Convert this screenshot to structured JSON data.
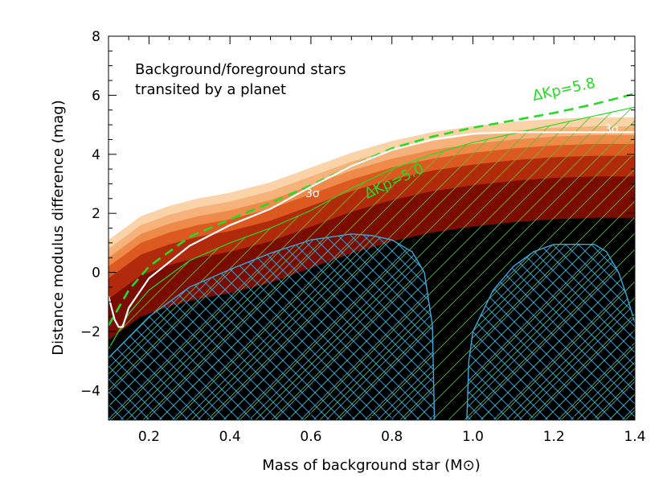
{
  "chart_data": {
    "type": "area",
    "xlabel": "Mass of background star (M⊙)",
    "ylabel": "Distance modulus difference (mag)",
    "xlim": [
      0.1,
      1.4
    ],
    "ylim": [
      -5,
      8
    ],
    "xticks": [
      0.2,
      0.4,
      0.6,
      0.8,
      1.0,
      1.2,
      1.4
    ],
    "xtick_labels": [
      "0.2",
      "0.4",
      "0.6",
      "0.8",
      "1.0",
      "1.2",
      "1.4"
    ],
    "yticks": [
      -4,
      -2,
      0,
      2,
      4,
      6,
      8
    ],
    "ytick_labels": [
      "−4",
      "−2",
      "0",
      "2",
      "4",
      "6",
      "8"
    ],
    "annotations": {
      "note_line1": "Background/foreground stars",
      "note_line2": "transited by a planet",
      "kp58_label": "ΔKp=5.8",
      "kp50_label": "ΔKp=5.0",
      "sigma_label_a": "3σ",
      "sigma_label_b": "3σ"
    },
    "colors": {
      "density_bands": [
        "#fbd3a8",
        "#f6b27a",
        "#ee8a4a",
        "#dc5a22",
        "#b22a0c",
        "#7a0c02",
        "#000000"
      ],
      "kp_lines": "#22dd22",
      "sigma_line": "#ffffff",
      "excluded_region": "#39a8dc"
    },
    "density_top": {
      "x": [
        0.1,
        0.13,
        0.18,
        0.25,
        0.32,
        0.4,
        0.5,
        0.6,
        0.7,
        0.8,
        0.9,
        1.0,
        1.1,
        1.2,
        1.3,
        1.4
      ],
      "y": [
        1.1,
        1.4,
        1.9,
        2.25,
        2.5,
        2.7,
        3.05,
        3.55,
        4.05,
        4.45,
        4.75,
        4.95,
        5.1,
        5.2,
        5.25,
        5.25
      ]
    },
    "series": [
      {
        "name": "ΔKp=5.8",
        "style": "dashed",
        "x": [
          0.1,
          0.15,
          0.2,
          0.3,
          0.4,
          0.5,
          0.6,
          0.7,
          0.8,
          0.9,
          1.0,
          1.1,
          1.2,
          1.3,
          1.4
        ],
        "y": [
          -1.8,
          -0.6,
          0.2,
          1.2,
          1.8,
          2.35,
          2.95,
          3.6,
          4.2,
          4.6,
          4.9,
          5.15,
          5.4,
          5.7,
          6.05
        ]
      },
      {
        "name": "ΔKp=5.0",
        "style": "solid",
        "x": [
          0.1,
          0.15,
          0.2,
          0.3,
          0.4,
          0.5,
          0.6,
          0.7,
          0.8,
          0.9,
          1.0,
          1.1,
          1.2,
          1.3,
          1.4
        ],
        "y": [
          -2.6,
          -1.4,
          -0.6,
          0.4,
          1.0,
          1.5,
          2.1,
          2.85,
          3.5,
          4.0,
          4.4,
          4.7,
          5.0,
          5.3,
          5.6
        ]
      },
      {
        "name": "3σ",
        "style": "solid",
        "x": [
          0.1,
          0.115,
          0.125,
          0.135,
          0.15,
          0.2,
          0.3,
          0.4,
          0.5,
          0.6,
          0.7,
          0.8,
          0.9,
          1.0,
          1.1,
          1.2,
          1.3,
          1.4
        ],
        "y": [
          -0.8,
          -1.6,
          -1.85,
          -1.85,
          -1.2,
          -0.2,
          0.9,
          1.6,
          2.15,
          2.9,
          3.6,
          4.15,
          4.5,
          4.7,
          4.75,
          4.75,
          4.75,
          4.75
        ]
      }
    ],
    "excluded_regions": [
      {
        "x": [
          0.1,
          0.2,
          0.3,
          0.4,
          0.5,
          0.6,
          0.7,
          0.75,
          0.8,
          0.85,
          0.88,
          0.9,
          0.905
        ],
        "y": [
          -2.9,
          -1.5,
          -0.5,
          0.1,
          0.65,
          1.1,
          1.3,
          1.25,
          1.1,
          0.7,
          0.0,
          -1.8,
          -5.0
        ]
      },
      {
        "x": [
          0.985,
          0.99,
          1.0,
          1.05,
          1.1,
          1.15,
          1.2,
          1.25,
          1.3,
          1.33,
          1.36,
          1.38,
          1.4
        ],
        "y": [
          -5.0,
          -3.0,
          -2.0,
          -0.6,
          0.2,
          0.7,
          0.95,
          0.95,
          0.95,
          0.7,
          0.0,
          -0.8,
          -1.7
        ]
      }
    ]
  }
}
